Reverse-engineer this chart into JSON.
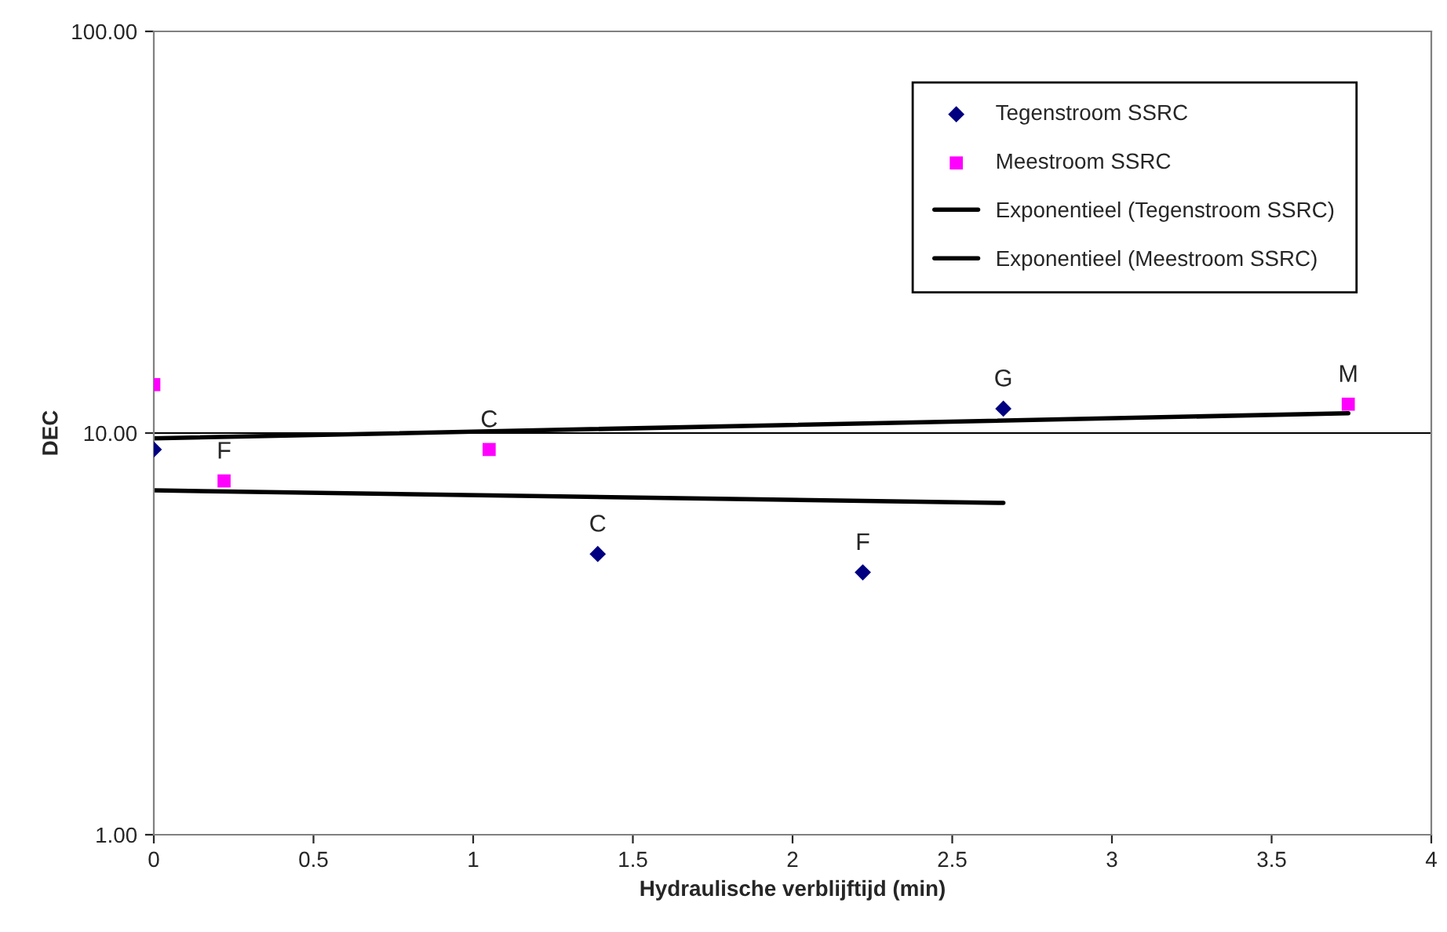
{
  "chart_data": {
    "type": "scatter",
    "xlabel": "Hydraulische verblijftijd (min)",
    "ylabel": "DEC",
    "log": "y",
    "grid": "y",
    "legend": "top right",
    "xlim": [
      0,
      4
    ],
    "xticks": [
      0,
      0.5,
      1,
      1.5,
      2,
      2.5,
      3,
      3.5,
      4
    ],
    "ylim": [
      1,
      100
    ],
    "yticks": [
      {
        "value": 1,
        "label": "1.00"
      },
      {
        "value": 10,
        "label": "10.00"
      },
      {
        "value": 100,
        "label": "100.00"
      }
    ],
    "series": [
      {
        "name": "Tegenstroom SSRC",
        "marker": "diamond",
        "color": "#000080",
        "x": [
          0,
          1.39,
          2.22,
          2.66
        ],
        "values": [
          9.1,
          5.0,
          4.5,
          11.5
        ]
      },
      {
        "name": "Meestroom SSRC",
        "marker": "square",
        "color": "#ff00ff",
        "x": [
          0,
          0.22,
          1.05,
          3.74
        ],
        "values": [
          13.2,
          7.6,
          9.1,
          11.8
        ]
      },
      {
        "name": "Exponentieel (Tegenstroom SSRC)",
        "type": "line",
        "marker": "none",
        "line_style": "solid",
        "color": "#000000",
        "x": [
          0,
          2.66
        ],
        "values": [
          7.2,
          6.7
        ]
      },
      {
        "name": "Exponentieel (Meestroom SSRC)",
        "type": "line",
        "marker": "none",
        "line_style": "solid",
        "color": "#000000",
        "x": [
          0,
          3.74
        ],
        "values": [
          9.7,
          11.2
        ]
      }
    ],
    "annotations": [
      {
        "text": "F",
        "x": 0.22,
        "y": 7.6
      },
      {
        "text": "C",
        "x": 1.05,
        "y": 9.1
      },
      {
        "text": "C",
        "x": 1.39,
        "y": 5.0
      },
      {
        "text": "F",
        "x": 2.22,
        "y": 4.5
      },
      {
        "text": "G",
        "x": 2.66,
        "y": 11.5
      },
      {
        "text": "M",
        "x": 3.74,
        "y": 11.8
      }
    ]
  }
}
